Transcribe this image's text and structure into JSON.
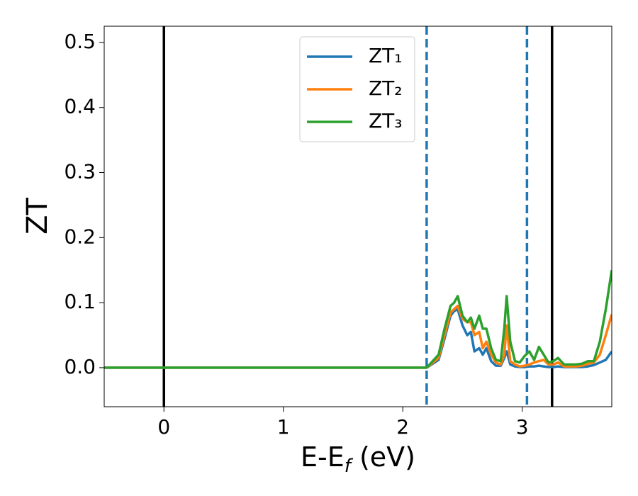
{
  "chart_data": {
    "type": "line",
    "y_label": "ZT",
    "x_label": [
      "E-E",
      "f",
      " (eV)"
    ],
    "x": [
      -0.5,
      2.2,
      2.3,
      2.35,
      2.4,
      2.43,
      2.46,
      2.5,
      2.54,
      2.57,
      2.6,
      2.64,
      2.67,
      2.7,
      2.74,
      2.78,
      2.82,
      2.85,
      2.87,
      2.9,
      2.94,
      2.98,
      3.02,
      3.06,
      3.1,
      3.14,
      3.18,
      3.22,
      3.26,
      3.3,
      3.35,
      3.4,
      3.45,
      3.5,
      3.55,
      3.6,
      3.65,
      3.7,
      3.75
    ],
    "series": [
      {
        "name": "ZT₁",
        "color": "#1f77b4",
        "values": [
          0,
          0,
          0.012,
          0.045,
          0.08,
          0.087,
          0.09,
          0.065,
          0.05,
          0.055,
          0.025,
          0.03,
          0.02,
          0.03,
          0.01,
          0.003,
          0.003,
          0.015,
          0.025,
          0.005,
          0.002,
          0.001,
          0.001,
          0.002,
          0.002,
          0.003,
          0.002,
          0.001,
          0.001,
          0.002,
          0.001,
          0.001,
          0.001,
          0.001,
          0.002,
          0.004,
          0.008,
          0.012,
          0.025
        ]
      },
      {
        "name": "ZT₂",
        "color": "#ff7f0e",
        "values": [
          0,
          0,
          0.015,
          0.05,
          0.085,
          0.09,
          0.095,
          0.075,
          0.07,
          0.07,
          0.05,
          0.055,
          0.03,
          0.04,
          0.02,
          0.008,
          0.005,
          0.02,
          0.065,
          0.01,
          0.005,
          0.002,
          0.003,
          0.005,
          0.008,
          0.01,
          0.012,
          0.005,
          0.005,
          0.008,
          0.002,
          0.002,
          0.002,
          0.003,
          0.006,
          0.008,
          0.02,
          0.05,
          0.082
        ]
      },
      {
        "name": "ZT₃",
        "color": "#2ca02c",
        "values": [
          0,
          0,
          0.02,
          0.06,
          0.095,
          0.1,
          0.11,
          0.08,
          0.07,
          0.077,
          0.06,
          0.08,
          0.06,
          0.06,
          0.03,
          0.012,
          0.01,
          0.06,
          0.11,
          0.04,
          0.01,
          0.008,
          0.018,
          0.025,
          0.012,
          0.032,
          0.02,
          0.008,
          0.01,
          0.015,
          0.005,
          0.005,
          0.005,
          0.006,
          0.01,
          0.01,
          0.04,
          0.09,
          0.15
        ]
      }
    ],
    "vlines": [
      {
        "x": 0,
        "color": "#000000",
        "style": "solid"
      },
      {
        "x": 3.25,
        "color": "#000000",
        "style": "solid"
      },
      {
        "x": 2.2,
        "color": "#1f77b4",
        "style": "dashed"
      },
      {
        "x": 3.04,
        "color": "#1f77b4",
        "style": "dashed"
      }
    ],
    "xlim": [
      -0.5,
      3.75
    ],
    "ylim": [
      -0.06,
      0.525
    ],
    "xticks": [
      0,
      1,
      2,
      3
    ],
    "yticks": [
      {
        "value": 0,
        "label": "0.0"
      },
      0.1,
      0.2,
      0.3,
      0.4,
      0.5
    ],
    "legend": "upper center"
  }
}
